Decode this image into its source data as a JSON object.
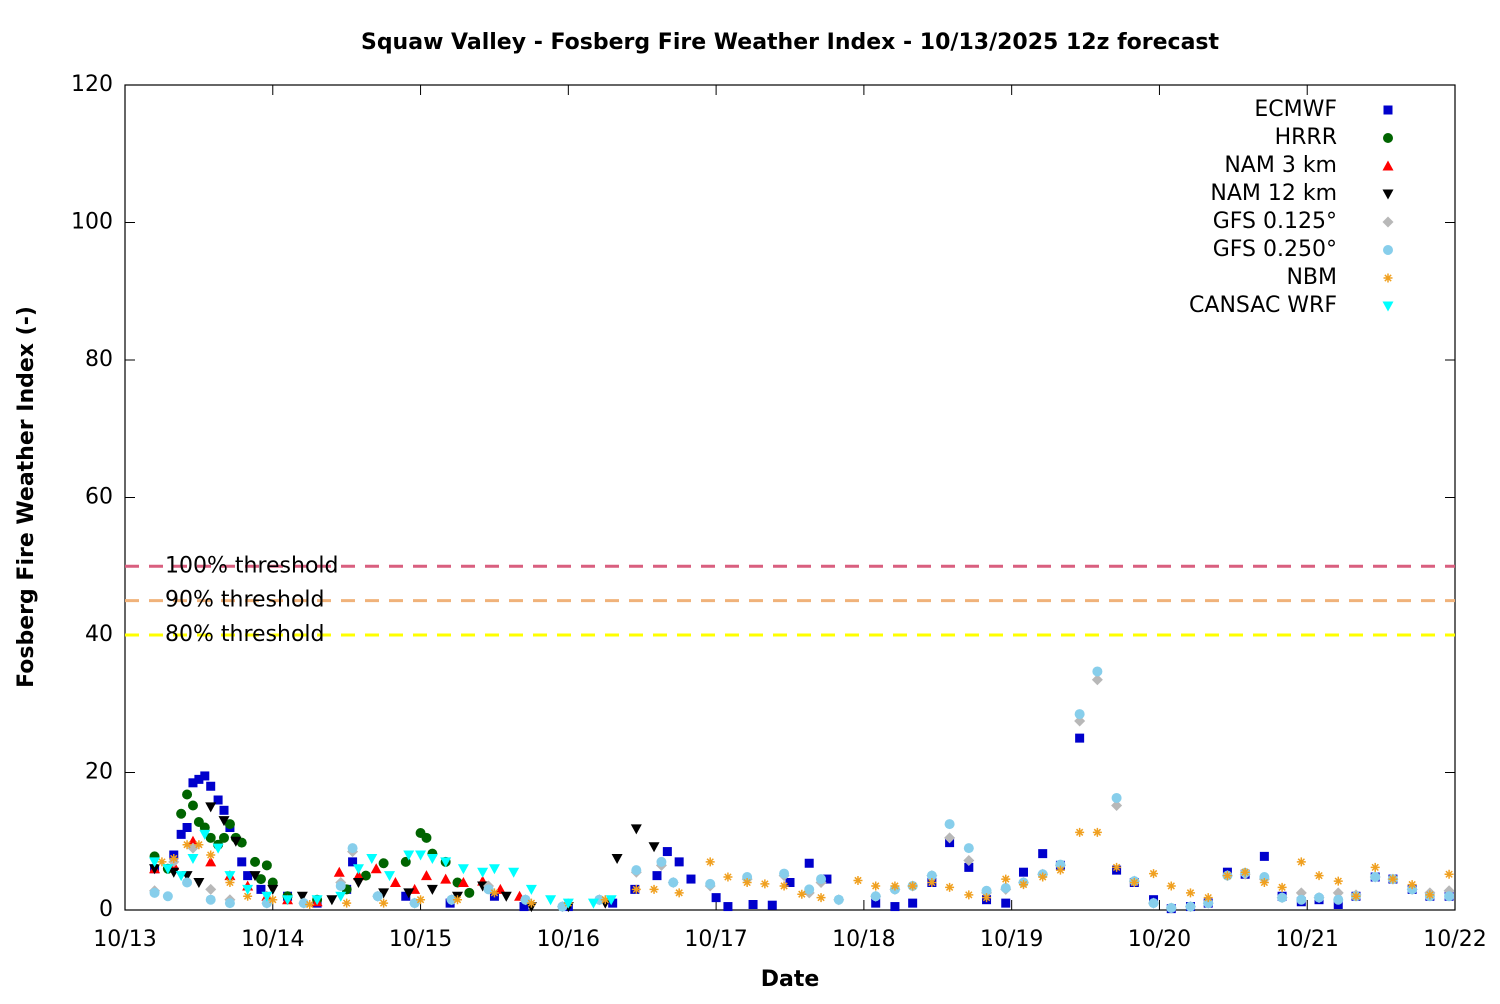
{
  "chart_data": {
    "type": "scatter",
    "title": "Squaw Valley - Fosberg Fire Weather Index - 10/13/2025 12z forecast",
    "x_label": "Date",
    "y_label": "Fosberg Fire Weather Index (-)",
    "xlim": [
      13,
      22
    ],
    "xticks": [
      {
        "value": 13,
        "label": "10/13"
      },
      {
        "value": 14,
        "label": "10/14"
      },
      {
        "value": 15,
        "label": "10/15"
      },
      {
        "value": 16,
        "label": "10/16"
      },
      {
        "value": 17,
        "label": "10/17"
      },
      {
        "value": 18,
        "label": "10/18"
      },
      {
        "value": 19,
        "label": "10/19"
      },
      {
        "value": 20,
        "label": "10/20"
      },
      {
        "value": 21,
        "label": "10/21"
      },
      {
        "value": 22,
        "label": "10/22"
      }
    ],
    "ylim": [
      0,
      120
    ],
    "yticks": [
      0,
      20,
      40,
      60,
      80,
      100,
      120
    ],
    "legend": "top-right",
    "thresholds": [
      {
        "label": "100% threshold",
        "value": 50,
        "color": "#d95f7f"
      },
      {
        "label": "90% threshold",
        "value": 45,
        "color": "#f0b27a"
      },
      {
        "label": "80% threshold",
        "value": 40,
        "color": "#ffff00"
      }
    ],
    "series": [
      {
        "name": "ECMWF",
        "color": "#0000cc",
        "marker": "square",
        "x": [
          13.2,
          13.33,
          13.38,
          13.42,
          13.46,
          13.5,
          13.54,
          13.58,
          13.63,
          13.67,
          13.71,
          13.79,
          13.83,
          13.92,
          14.1,
          14.3,
          14.5,
          14.54,
          14.9,
          15.2,
          15.5,
          15.7,
          16.0,
          16.3,
          16.45,
          16.6,
          16.67,
          16.75,
          16.83,
          17.0,
          17.08,
          17.25,
          17.38,
          17.5,
          17.63,
          17.75,
          18.08,
          18.21,
          18.33,
          18.46,
          18.58,
          18.71,
          18.83,
          18.96,
          19.08,
          19.21,
          19.33,
          19.46,
          19.71,
          19.83,
          19.96,
          20.08,
          20.21,
          20.33,
          20.46,
          20.58,
          20.71,
          20.83,
          20.96,
          21.08,
          21.21,
          21.33,
          21.46,
          21.58,
          21.71,
          21.83,
          21.96
        ],
        "values": [
          6,
          8,
          11,
          12,
          18.5,
          19,
          19.5,
          18,
          16,
          14.5,
          12,
          7,
          5,
          3,
          2,
          1,
          3,
          7,
          2,
          1,
          2,
          0.5,
          0.5,
          1,
          3,
          5,
          8.5,
          7,
          4.5,
          1.8,
          0.5,
          0.8,
          0.7,
          4,
          6.8,
          4.5,
          1,
          0.5,
          1,
          4,
          9.8,
          6.2,
          1.5,
          1,
          5.5,
          8.2,
          6.5,
          25,
          5.8,
          4,
          1.5,
          0.2,
          0.5,
          1,
          5.5,
          5.2,
          7.8,
          2,
          1.2,
          1.5,
          0.8,
          2,
          4.8,
          4.5,
          3,
          2,
          2
        ]
      },
      {
        "name": "HRRR",
        "color": "#006400",
        "marker": "circle",
        "x": [
          13.2,
          13.29,
          13.38,
          13.42,
          13.46,
          13.5,
          13.54,
          13.58,
          13.63,
          13.67,
          13.71,
          13.75,
          13.79,
          13.88,
          13.92,
          13.96,
          14.0,
          14.1,
          14.3,
          14.5,
          14.63,
          14.75,
          14.9,
          15.0,
          15.04,
          15.08,
          15.17,
          15.25,
          15.33
        ],
        "values": [
          7.8,
          6,
          14,
          16.8,
          15.2,
          12.8,
          12,
          10.5,
          9.5,
          10.5,
          12.5,
          10.5,
          9.8,
          7,
          4.5,
          6.5,
          4,
          2,
          1.5,
          3,
          5,
          6.8,
          7,
          11.2,
          10.5,
          8.2,
          7,
          4,
          2.5
        ]
      },
      {
        "name": "NAM 3 km",
        "color": "#ff0000",
        "marker": "triangle",
        "x": [
          13.2,
          13.33,
          13.46,
          13.58,
          13.71,
          13.83,
          13.96,
          14.1,
          14.3,
          14.45,
          14.58,
          14.7,
          14.83,
          14.96,
          15.04,
          15.17,
          15.29,
          15.42,
          15.54,
          15.67
        ],
        "values": [
          6,
          6.5,
          10,
          7,
          5,
          3.5,
          2,
          1.5,
          1.2,
          5.5,
          5,
          6,
          4,
          3,
          5,
          4.5,
          4,
          4.2,
          3,
          2
        ]
      },
      {
        "name": "NAM 12 km",
        "color": "#000000",
        "marker": "triangle-down",
        "x": [
          13.2,
          13.33,
          13.42,
          13.5,
          13.58,
          13.67,
          13.75,
          13.88,
          14.0,
          14.2,
          14.4,
          14.58,
          14.75,
          14.92,
          15.08,
          15.25,
          15.42,
          15.58,
          15.75,
          16.0,
          16.25,
          16.33,
          16.46,
          16.58
        ],
        "values": [
          6,
          5.5,
          5,
          4,
          15,
          13,
          10,
          5,
          3,
          2,
          1.5,
          4,
          2.5,
          2.5,
          3,
          2,
          3.5,
          2,
          0.5,
          0.5,
          1,
          7.5,
          11.8,
          9.2
        ]
      },
      {
        "name": "GFS 0.125°",
        "color": "#b8b8b8",
        "marker": "diamond",
        "x": [
          13.2,
          13.33,
          13.46,
          13.58,
          13.71,
          13.96,
          14.21,
          14.46,
          14.54,
          14.71,
          14.96,
          15.21,
          15.46,
          15.71,
          15.96,
          16.21,
          16.46,
          16.63,
          16.71,
          16.96,
          17.21,
          17.46,
          17.63,
          17.71,
          17.83,
          18.08,
          18.21,
          18.33,
          18.46,
          18.58,
          18.71,
          18.83,
          18.96,
          19.08,
          19.21,
          19.33,
          19.46,
          19.58,
          19.71,
          19.83,
          19.96,
          20.08,
          20.21,
          20.33,
          20.46,
          20.58,
          20.71,
          20.83,
          20.96,
          21.08,
          21.21,
          21.33,
          21.46,
          21.58,
          21.71,
          21.83,
          21.96
        ],
        "values": [
          2.8,
          7,
          9,
          3,
          1.5,
          1,
          1,
          4,
          8.5,
          2,
          1,
          1.5,
          3.5,
          1.5,
          0.5,
          1.5,
          5.5,
          6.5,
          4,
          3.5,
          4.5,
          5,
          2.5,
          4,
          1.5,
          2,
          3,
          3.5,
          5,
          10.5,
          7.2,
          2.5,
          3,
          4,
          5.2,
          6.5,
          27.5,
          33.5,
          15.2,
          4.2,
          1,
          0.3,
          0.5,
          1,
          5,
          5.2,
          4.5,
          1.8,
          2.5,
          1.8,
          2.5,
          2.2,
          4.8,
          4.5,
          3,
          2.5,
          2.8
        ]
      },
      {
        "name": "GFS 0.250°",
        "color": "#87ceeb",
        "marker": "circle",
        "x": [
          13.2,
          13.29,
          13.42,
          13.58,
          13.71,
          13.96,
          14.21,
          14.46,
          14.54,
          14.71,
          14.96,
          15.21,
          15.46,
          15.71,
          15.96,
          16.21,
          16.46,
          16.63,
          16.71,
          16.96,
          17.21,
          17.46,
          17.63,
          17.71,
          17.83,
          18.08,
          18.21,
          18.33,
          18.46,
          18.58,
          18.71,
          18.83,
          18.96,
          19.08,
          19.21,
          19.33,
          19.46,
          19.58,
          19.71,
          19.83,
          19.96,
          20.08,
          20.21,
          20.33,
          20.46,
          20.58,
          20.71,
          20.83,
          20.96,
          21.08,
          21.21,
          21.33,
          21.46,
          21.58,
          21.71,
          21.83,
          21.96
        ],
        "values": [
          2.5,
          2,
          4,
          1.5,
          1,
          1,
          1,
          3.5,
          9,
          2,
          1,
          1.5,
          3,
          1.5,
          0.5,
          1.5,
          5.8,
          7,
          4,
          3.8,
          4.8,
          5.3,
          3,
          4.5,
          1.5,
          2,
          3,
          3.5,
          5,
          12.5,
          9,
          2.8,
          3.2,
          4,
          5.2,
          6.6,
          28.5,
          34.7,
          16.3,
          4.2,
          1,
          0.3,
          0.5,
          1,
          5,
          5.4,
          4.8,
          1.8,
          1.5,
          1.8,
          1.5,
          2,
          4.8,
          4.5,
          3,
          2,
          2
        ]
      },
      {
        "name": "NBM",
        "color": "#f0a020",
        "marker": "asterisk",
        "x": [
          13.25,
          13.33,
          13.42,
          13.5,
          13.58,
          13.71,
          13.83,
          14.0,
          14.25,
          14.5,
          14.75,
          15.0,
          15.25,
          15.5,
          15.75,
          16.0,
          16.25,
          16.46,
          16.58,
          16.75,
          16.96,
          17.08,
          17.21,
          17.33,
          17.46,
          17.58,
          17.71,
          17.96,
          18.08,
          18.21,
          18.33,
          18.46,
          18.58,
          18.71,
          18.83,
          18.96,
          19.08,
          19.21,
          19.33,
          19.46,
          19.58,
          19.71,
          19.83,
          19.96,
          20.08,
          20.21,
          20.33,
          20.46,
          20.58,
          20.71,
          20.83,
          20.96,
          21.08,
          21.21,
          21.33,
          21.46,
          21.58,
          21.71,
          21.83,
          21.96
        ],
        "values": [
          7,
          7.5,
          9.5,
          9.5,
          8,
          4,
          2,
          1.5,
          0.8,
          1,
          1,
          1.5,
          1.5,
          2.5,
          1,
          1,
          1.5,
          3,
          3,
          2.5,
          7,
          4.8,
          4,
          3.8,
          3.5,
          2.3,
          1.8,
          4.3,
          3.5,
          3.5,
          3.5,
          4,
          3.3,
          2.2,
          1.8,
          4.5,
          3.7,
          4.8,
          5.8,
          11.3,
          11.3,
          6.2,
          4,
          5.3,
          3.5,
          2.5,
          1.8,
          5,
          5.5,
          4,
          3.3,
          7,
          5,
          4.2,
          2,
          6.2,
          4.5,
          3.7,
          2.2,
          5.2
        ]
      },
      {
        "name": "CANSAC WRF",
        "color": "#00ffff",
        "marker": "triangle-down",
        "x": [
          13.2,
          13.29,
          13.38,
          13.46,
          13.54,
          13.63,
          13.71,
          13.83,
          13.96,
          14.1,
          14.3,
          14.46,
          14.58,
          14.67,
          14.79,
          14.92,
          15.0,
          15.08,
          15.17,
          15.29,
          15.42,
          15.5,
          15.63,
          15.75,
          15.88,
          16.0,
          16.17,
          16.29
        ],
        "values": [
          7,
          6,
          5,
          7.5,
          11,
          9,
          5,
          3,
          2,
          1.5,
          1.5,
          2,
          6,
          7.5,
          5,
          8,
          8,
          7.5,
          7,
          6,
          5.5,
          6,
          5.5,
          3,
          1.5,
          1,
          1,
          1.5
        ]
      }
    ]
  }
}
